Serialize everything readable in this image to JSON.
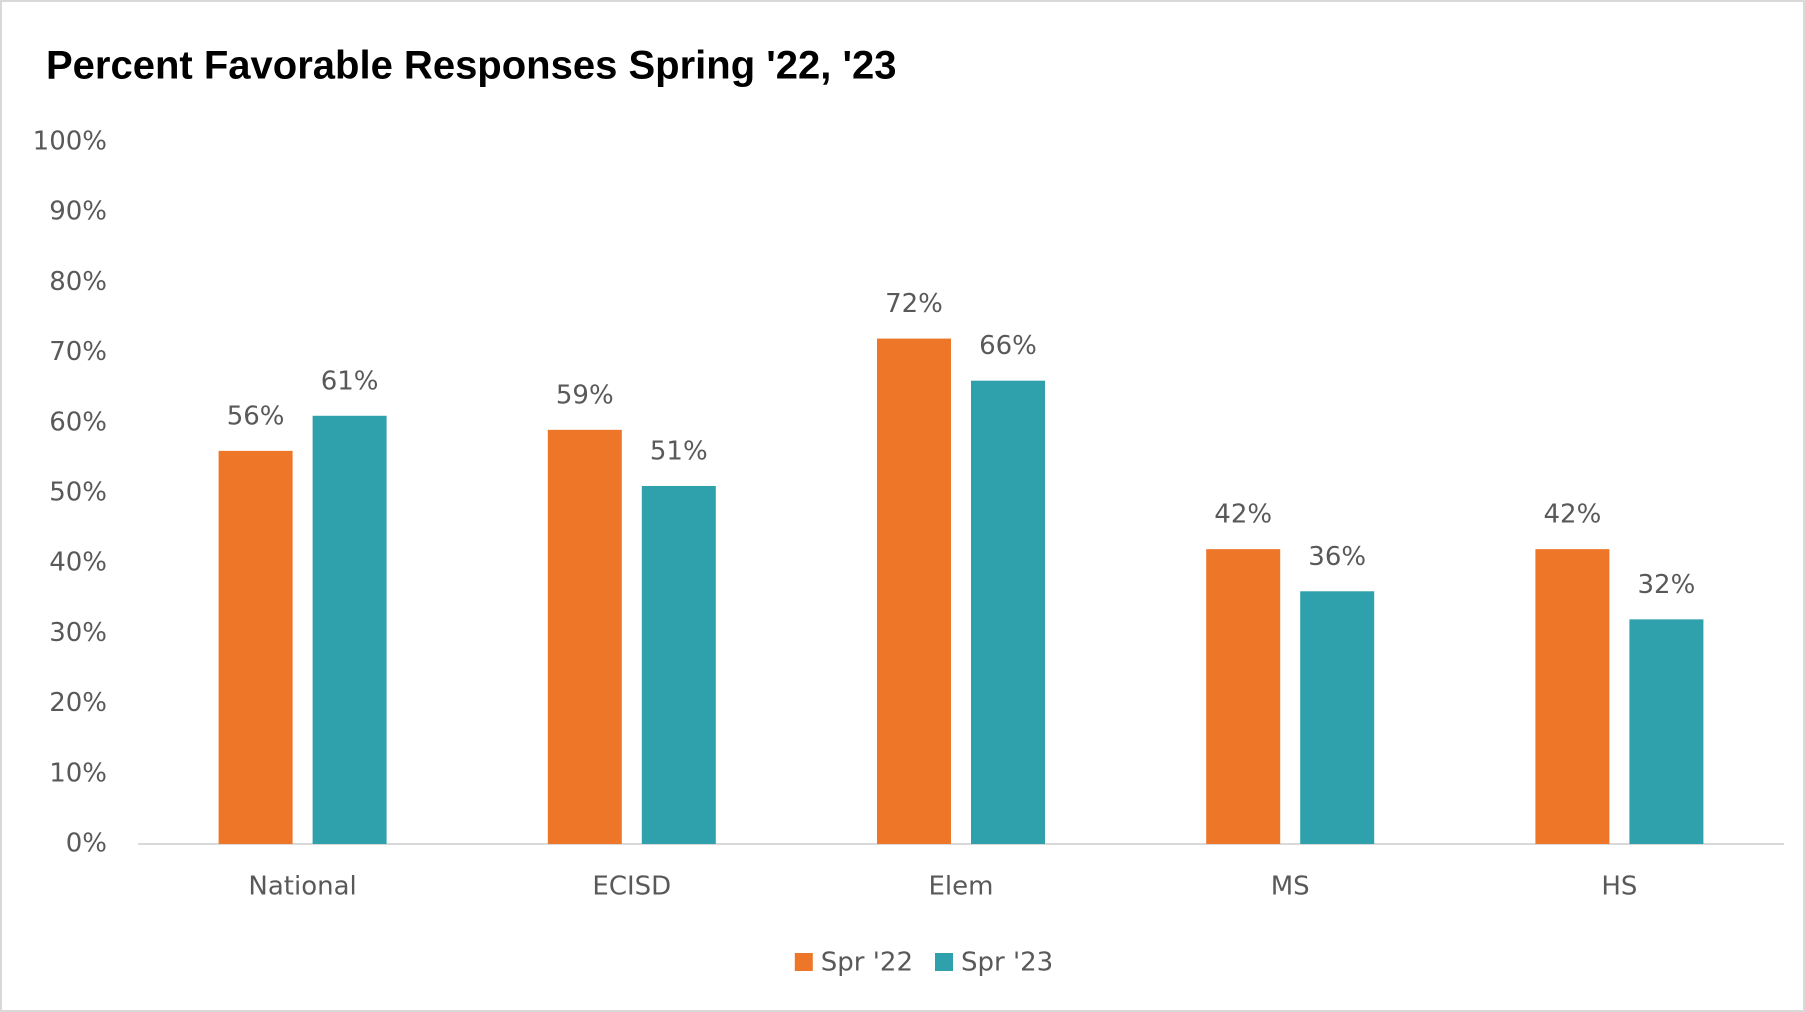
{
  "chart_data": {
    "type": "bar",
    "title": "Percent Favorable Responses Spring '22, '23",
    "categories": [
      "National",
      "ECISD",
      "Elem",
      "MS",
      "HS"
    ],
    "series": [
      {
        "name": "Spr '22",
        "color": "#ee7628",
        "values": [
          56,
          59,
          72,
          42,
          42
        ],
        "value_labels": [
          "56%",
          "59%",
          "72%",
          "42%",
          "42%"
        ]
      },
      {
        "name": "Spr '23",
        "color": "#2ea1ad",
        "values": [
          61,
          51,
          66,
          36,
          32
        ],
        "value_labels": [
          "61%",
          "51%",
          "66%",
          "36%",
          "32%"
        ]
      }
    ],
    "ylim": [
      0,
      100
    ],
    "yticks": [
      {
        "value": 0,
        "label": "0%"
      },
      {
        "value": 10,
        "label": "10%"
      },
      {
        "value": 20,
        "label": "20%"
      },
      {
        "value": 30,
        "label": "30%"
      },
      {
        "value": 40,
        "label": "40%"
      },
      {
        "value": 50,
        "label": "50%"
      },
      {
        "value": 60,
        "label": "60%"
      },
      {
        "value": 70,
        "label": "70%"
      },
      {
        "value": 80,
        "label": "80%"
      },
      {
        "value": 90,
        "label": "90%"
      },
      {
        "value": 100,
        "label": "100%"
      }
    ],
    "grid": false,
    "legend": "bottom"
  }
}
